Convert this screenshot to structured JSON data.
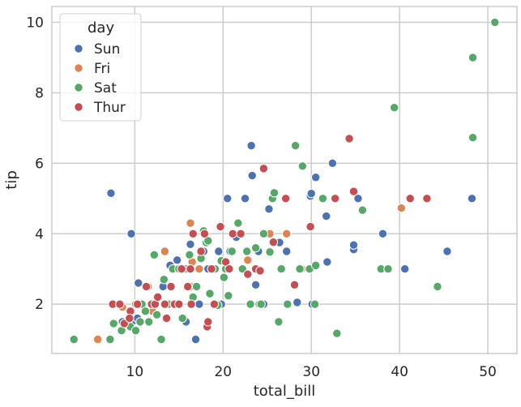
{
  "chart_data": {
    "type": "scatter",
    "title": "",
    "xlabel": "total_bill",
    "ylabel": "tip",
    "xlim": [
      0.6,
      53.3
    ],
    "ylim": [
      0.6,
      10.45
    ],
    "xticks": [
      10,
      20,
      30,
      40,
      50
    ],
    "yticks": [
      2,
      4,
      6,
      8,
      10
    ],
    "grid": true,
    "legend": {
      "title": "day",
      "position": "top-left",
      "entries": [
        {
          "label": "Sun",
          "color": "#4c72b0"
        },
        {
          "label": "Fri",
          "color": "#dd8452"
        },
        {
          "label": "Sat",
          "color": "#55a868"
        },
        {
          "label": "Thur",
          "color": "#c44e52"
        }
      ]
    },
    "series": [
      {
        "name": "Sun",
        "color": "#4c72b0",
        "points": [
          [
            7.3,
            5.15
          ],
          [
            9.6,
            4.0
          ],
          [
            10.4,
            2.6
          ],
          [
            8.6,
            1.5
          ],
          [
            9.7,
            1.5
          ],
          [
            10.3,
            1.6
          ],
          [
            12.0,
            2.0
          ],
          [
            13.2,
            2.5
          ],
          [
            14.0,
            3.1
          ],
          [
            14.8,
            3.25
          ],
          [
            15.1,
            2.0
          ],
          [
            15.4,
            3.0
          ],
          [
            15.8,
            1.5
          ],
          [
            16.3,
            3.7
          ],
          [
            16.9,
            1.0
          ],
          [
            17.3,
            2.0
          ],
          [
            17.8,
            3.5
          ],
          [
            18.3,
            3.0
          ],
          [
            19.5,
            3.5
          ],
          [
            19.8,
            2.0
          ],
          [
            20.5,
            5.0
          ],
          [
            20.8,
            3.5
          ],
          [
            21.5,
            3.9
          ],
          [
            22.5,
            5.0
          ],
          [
            23.2,
            6.5
          ],
          [
            23.3,
            5.65
          ],
          [
            23.7,
            2.55
          ],
          [
            24.0,
            3.5
          ],
          [
            25.2,
            4.7
          ],
          [
            25.3,
            4.0
          ],
          [
            26.4,
            3.75
          ],
          [
            27.2,
            3.5
          ],
          [
            28.4,
            2.05
          ],
          [
            29.9,
            5.07
          ],
          [
            30.0,
            5.14
          ],
          [
            30.1,
            2.0
          ],
          [
            30.5,
            5.6
          ],
          [
            31.7,
            4.5
          ],
          [
            32.4,
            6.0
          ],
          [
            34.8,
            3.55
          ],
          [
            34.8,
            3.68
          ],
          [
            35.3,
            5.0
          ],
          [
            38.1,
            4.0
          ],
          [
            40.6,
            3.0
          ],
          [
            45.4,
            3.5
          ],
          [
            48.2,
            5.0
          ],
          [
            31.8,
            3.2
          ],
          [
            24.6,
            2.0
          ]
        ]
      },
      {
        "name": "Fri",
        "color": "#dd8452",
        "points": [
          [
            5.8,
            1.0
          ],
          [
            8.6,
            1.92
          ],
          [
            10.1,
            2.0
          ],
          [
            11.5,
            2.5
          ],
          [
            12.5,
            2.2
          ],
          [
            13.4,
            3.5
          ],
          [
            13.5,
            1.6
          ],
          [
            15.4,
            3.0
          ],
          [
            16.3,
            4.3
          ],
          [
            16.3,
            2.5
          ],
          [
            16.5,
            3.2
          ],
          [
            17.3,
            3.0
          ],
          [
            20.8,
            3.0
          ],
          [
            22.8,
            3.25
          ],
          [
            25.3,
            4.0
          ],
          [
            27.2,
            4.0
          ],
          [
            28.9,
            3.0
          ],
          [
            40.2,
            4.73
          ],
          [
            12.0,
            1.8
          ]
        ]
      },
      {
        "name": "Sat",
        "color": "#55a868",
        "points": [
          [
            3.1,
            1.0
          ],
          [
            7.2,
            1.0
          ],
          [
            7.6,
            1.45
          ],
          [
            8.5,
            1.25
          ],
          [
            9.5,
            1.36
          ],
          [
            10.1,
            1.25
          ],
          [
            10.6,
            1.5
          ],
          [
            10.8,
            2.0
          ],
          [
            11.2,
            1.8
          ],
          [
            11.6,
            1.5
          ],
          [
            12.2,
            3.4
          ],
          [
            12.5,
            1.7
          ],
          [
            13.0,
            1.0
          ],
          [
            13.3,
            2.7
          ],
          [
            13.8,
            2.0
          ],
          [
            14.3,
            3.0
          ],
          [
            14.8,
            2.0
          ],
          [
            15.0,
            3.0
          ],
          [
            15.4,
            1.6
          ],
          [
            15.8,
            3.0
          ],
          [
            16.2,
            3.4
          ],
          [
            16.6,
            2.2
          ],
          [
            17.0,
            2.5
          ],
          [
            17.5,
            3.3
          ],
          [
            17.8,
            4.08
          ],
          [
            18.1,
            3.75
          ],
          [
            18.5,
            2.3
          ],
          [
            19.1,
            3.0
          ],
          [
            19.4,
            1.97
          ],
          [
            19.8,
            3.23
          ],
          [
            20.1,
            2.76
          ],
          [
            20.3,
            3.0
          ],
          [
            20.6,
            2.24
          ],
          [
            21.0,
            3.5
          ],
          [
            21.7,
            4.3
          ],
          [
            22.2,
            3.0
          ],
          [
            22.7,
            3.5
          ],
          [
            23.1,
            2.0
          ],
          [
            23.7,
            3.6
          ],
          [
            24.1,
            2.0
          ],
          [
            24.6,
            4.0
          ],
          [
            25.3,
            3.48
          ],
          [
            25.6,
            5.0
          ],
          [
            25.8,
            5.16
          ],
          [
            26.3,
            1.5
          ],
          [
            26.6,
            3.0
          ],
          [
            27.3,
            2.0
          ],
          [
            28.2,
            6.5
          ],
          [
            28.7,
            3.0
          ],
          [
            29.0,
            5.92
          ],
          [
            29.8,
            3.0
          ],
          [
            30.4,
            2.0
          ],
          [
            30.5,
            3.1
          ],
          [
            31.3,
            5.0
          ],
          [
            32.9,
            1.17
          ],
          [
            35.8,
            4.67
          ],
          [
            37.9,
            3.0
          ],
          [
            38.7,
            3.0
          ],
          [
            39.4,
            7.58
          ],
          [
            44.3,
            2.5
          ],
          [
            48.3,
            9.0
          ],
          [
            48.3,
            6.73
          ],
          [
            50.8,
            10.0
          ],
          [
            24.3,
            2.0
          ],
          [
            18.3,
            3.8
          ]
        ]
      },
      {
        "name": "Thur",
        "color": "#c44e52",
        "points": [
          [
            7.5,
            2.0
          ],
          [
            8.3,
            2.0
          ],
          [
            8.8,
            1.45
          ],
          [
            9.5,
            1.8
          ],
          [
            10.3,
            2.0
          ],
          [
            11.3,
            2.5
          ],
          [
            11.9,
            2.0
          ],
          [
            12.3,
            2.0
          ],
          [
            12.6,
            2.2
          ],
          [
            13.4,
            2.0
          ],
          [
            13.6,
            1.6
          ],
          [
            14.1,
            2.5
          ],
          [
            14.5,
            2.0
          ],
          [
            15.0,
            2.0
          ],
          [
            15.3,
            3.0
          ],
          [
            16.0,
            2.5
          ],
          [
            16.4,
            2.0
          ],
          [
            16.6,
            4.0
          ],
          [
            17.5,
            3.5
          ],
          [
            17.9,
            4.0
          ],
          [
            18.2,
            1.36
          ],
          [
            18.7,
            3.0
          ],
          [
            19.0,
            2.0
          ],
          [
            19.7,
            4.2
          ],
          [
            20.3,
            3.2
          ],
          [
            20.7,
            3.0
          ],
          [
            21.1,
            4.0
          ],
          [
            22.0,
            4.0
          ],
          [
            22.8,
            2.85
          ],
          [
            23.7,
            3.0
          ],
          [
            24.2,
            2.95
          ],
          [
            24.6,
            5.85
          ],
          [
            25.7,
            3.76
          ],
          [
            27.1,
            5.0
          ],
          [
            28.1,
            2.55
          ],
          [
            29.9,
            4.2
          ],
          [
            32.7,
            5.0
          ],
          [
            34.3,
            6.7
          ],
          [
            34.8,
            5.2
          ],
          [
            41.2,
            5.0
          ],
          [
            43.1,
            5.0
          ],
          [
            18.3,
            1.5
          ],
          [
            16.3,
            3.0
          ],
          [
            9.4,
            1.6
          ]
        ]
      }
    ]
  }
}
